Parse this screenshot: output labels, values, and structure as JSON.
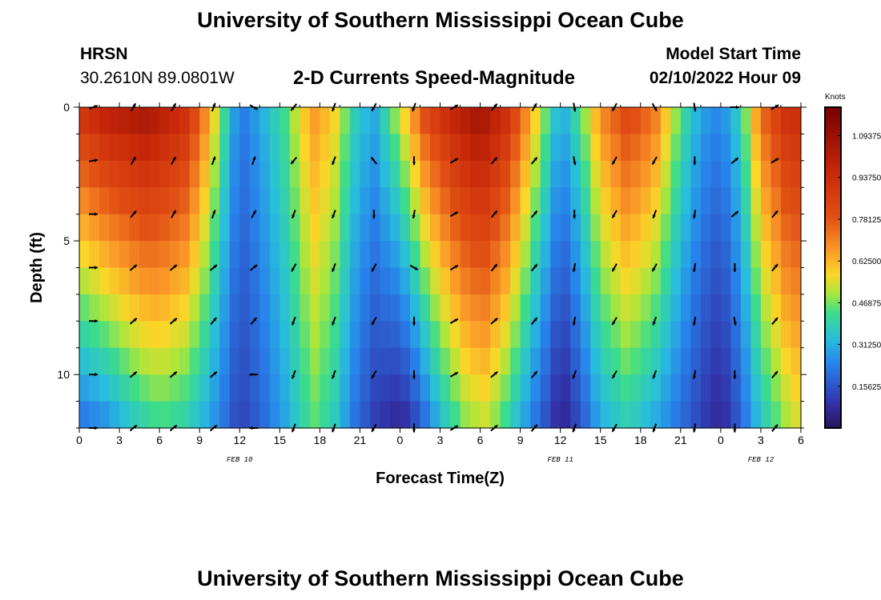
{
  "header": {
    "title": "University of Southern Mississippi Ocean Cube",
    "station": "HRSN",
    "coordinates": "30.2610N  89.0801W",
    "subtitle": "2-D Currents Speed-Magnitude",
    "model_start_label": "Model Start Time",
    "model_start_value": "02/10/2022 Hour 09"
  },
  "footer": {
    "title": "University of Southern Mississippi Ocean Cube"
  },
  "chart_data": {
    "type": "heatmap",
    "title": "2-D Currents Speed-Magnitude",
    "xlabel": "Forecast Time(Z)",
    "ylabel": "Depth (ft)",
    "xlim": [
      0,
      54
    ],
    "ylim": [
      0,
      12
    ],
    "x_tick_values": [
      0,
      3,
      6,
      9,
      12,
      15,
      18,
      21,
      24,
      27,
      30,
      33,
      36,
      39,
      42,
      45,
      48,
      51,
      54
    ],
    "x_tick_labels": [
      "0",
      "3",
      "6",
      "9",
      "12",
      "15",
      "18",
      "21",
      "0",
      "3",
      "6",
      "9",
      "12",
      "15",
      "18",
      "21",
      "0",
      "3",
      "6"
    ],
    "y_ticks": [
      0,
      5,
      10
    ],
    "date_labels": [
      {
        "x": 12,
        "text": "FEB 10"
      },
      {
        "x": 36,
        "text": "FEB 11"
      },
      {
        "x": 51,
        "text": "FEB 12"
      }
    ],
    "colorbar": {
      "label": "Knots",
      "ticks": [
        0.15625,
        0.3125,
        0.46875,
        0.625,
        0.78125,
        0.9375,
        1.09375
      ],
      "tick_labels": [
        "0.15625",
        "0.31250",
        "0.46875",
        "0.62500",
        "0.78125",
        "0.93750",
        "1.09375"
      ],
      "range": [
        0.0,
        1.2
      ]
    },
    "speed_profile_surface": [
      [
        0,
        0.92
      ],
      [
        2,
        1.02
      ],
      [
        5,
        1.08
      ],
      [
        8,
        0.95
      ],
      [
        9.5,
        0.7
      ],
      [
        11,
        0.4
      ],
      [
        12,
        0.22
      ],
      [
        13.5,
        0.3
      ],
      [
        15.5,
        0.45
      ],
      [
        17.5,
        0.68
      ],
      [
        19,
        0.6
      ],
      [
        20.5,
        0.4
      ],
      [
        22,
        0.3
      ],
      [
        24,
        0.55
      ],
      [
        26,
        0.85
      ],
      [
        28,
        1.0
      ],
      [
        30,
        1.1
      ],
      [
        32,
        0.95
      ],
      [
        34,
        0.62
      ],
      [
        35.5,
        0.38
      ],
      [
        36,
        0.3
      ],
      [
        37.5,
        0.45
      ],
      [
        39,
        0.7
      ],
      [
        41,
        0.85
      ],
      [
        43,
        0.75
      ],
      [
        45,
        0.45
      ],
      [
        46.5,
        0.3
      ],
      [
        48,
        0.25
      ],
      [
        49.5,
        0.4
      ],
      [
        51,
        0.75
      ],
      [
        53,
        0.95
      ],
      [
        54,
        0.95
      ]
    ],
    "speed_profile_bottom": [
      [
        0,
        0.2
      ],
      [
        2,
        0.25
      ],
      [
        4,
        0.35
      ],
      [
        6,
        0.42
      ],
      [
        8,
        0.38
      ],
      [
        9.5,
        0.3
      ],
      [
        11,
        0.2
      ],
      [
        12,
        0.12
      ],
      [
        13.5,
        0.18
      ],
      [
        15.5,
        0.3
      ],
      [
        17.5,
        0.45
      ],
      [
        19,
        0.38
      ],
      [
        20.5,
        0.22
      ],
      [
        22,
        0.12
      ],
      [
        24,
        0.05
      ],
      [
        25.5,
        0.15
      ],
      [
        27,
        0.32
      ],
      [
        29,
        0.48
      ],
      [
        30.5,
        0.52
      ],
      [
        32,
        0.4
      ],
      [
        34,
        0.22
      ],
      [
        35.5,
        0.1
      ],
      [
        36,
        0.04
      ],
      [
        37.5,
        0.15
      ],
      [
        39,
        0.3
      ],
      [
        41,
        0.38
      ],
      [
        43,
        0.3
      ],
      [
        45,
        0.2
      ],
      [
        46.5,
        0.12
      ],
      [
        48,
        0.06
      ],
      [
        49.5,
        0.18
      ],
      [
        51,
        0.35
      ],
      [
        53,
        0.5
      ],
      [
        54,
        0.55
      ]
    ],
    "vector_times": [
      0,
      3,
      6,
      9,
      12,
      15,
      18,
      21,
      24,
      27,
      30,
      33,
      36,
      39,
      42,
      45,
      48,
      51
    ],
    "vector_depths": [
      0,
      2,
      4,
      6,
      8,
      10,
      12
    ],
    "vector_directions_deg": [
      [
        70,
        30,
        30,
        20,
        120,
        220,
        200,
        210,
        200,
        60,
        40,
        30,
        170,
        210,
        150,
        170,
        90,
        60
      ],
      [
        80,
        30,
        30,
        20,
        20,
        220,
        200,
        320,
        180,
        60,
        40,
        40,
        170,
        210,
        210,
        180,
        50,
        60
      ],
      [
        90,
        40,
        30,
        20,
        30,
        200,
        200,
        180,
        190,
        60,
        40,
        40,
        180,
        210,
        200,
        190,
        50,
        40
      ],
      [
        90,
        50,
        50,
        50,
        50,
        210,
        200,
        210,
        120,
        60,
        40,
        40,
        190,
        210,
        210,
        190,
        180,
        40
      ],
      [
        90,
        50,
        50,
        40,
        40,
        200,
        200,
        210,
        180,
        60,
        50,
        40,
        190,
        210,
        200,
        190,
        170,
        40
      ],
      [
        90,
        50,
        50,
        50,
        270,
        200,
        200,
        210,
        180,
        60,
        50,
        40,
        200,
        210,
        200,
        190,
        180,
        40
      ],
      [
        90,
        50,
        50,
        50,
        270,
        200,
        200,
        210,
        180,
        60,
        50,
        40,
        200,
        210,
        200,
        190,
        180,
        40
      ]
    ]
  }
}
